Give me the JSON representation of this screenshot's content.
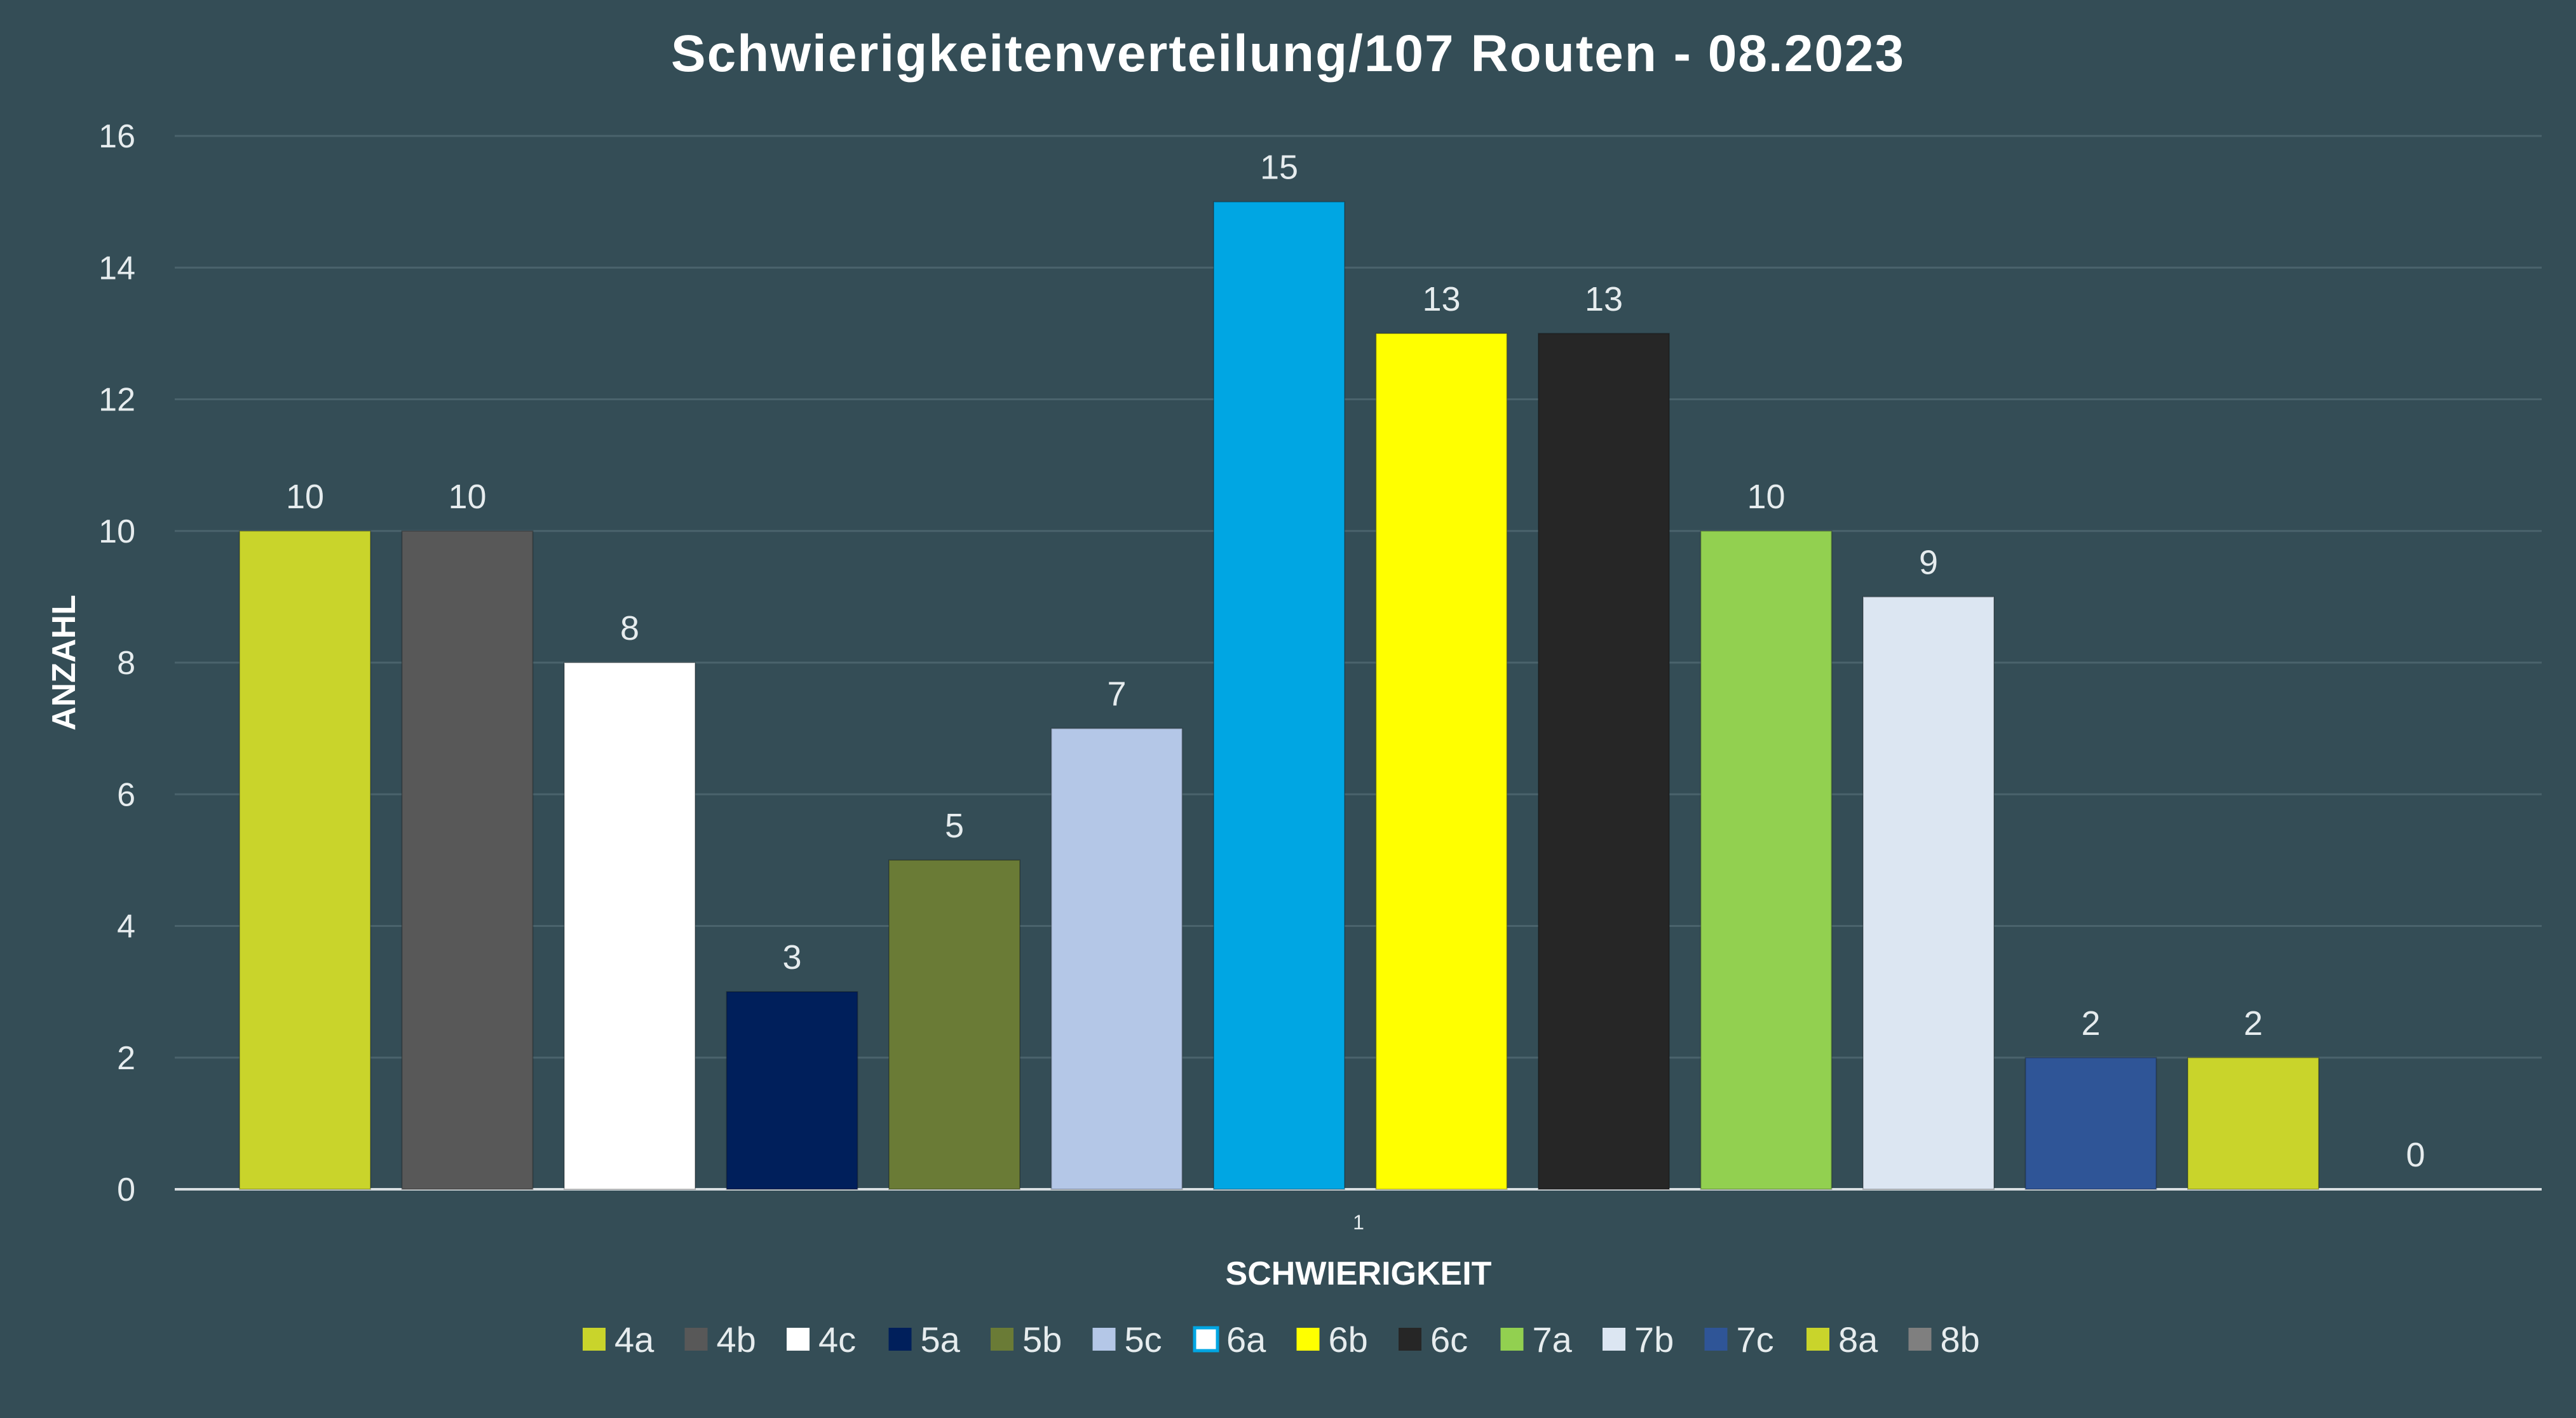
{
  "chart_data": {
    "type": "bar",
    "title": "Schwierigkeitenverteilung/107 Routen - 08.2023",
    "xlabel": "SCHWIERIGKEIT",
    "ylabel": "ANZAHL",
    "category_label": "1",
    "ylim": [
      0,
      16
    ],
    "yticks": [
      0,
      2,
      4,
      6,
      8,
      10,
      12,
      14,
      16
    ],
    "grid": true,
    "legend_position": "bottom",
    "series": [
      {
        "name": "4a",
        "value": 10,
        "color": "#c9d42b"
      },
      {
        "name": "4b",
        "value": 10,
        "color": "#585858"
      },
      {
        "name": "4c",
        "value": 8,
        "color": "#ffffff"
      },
      {
        "name": "5a",
        "value": 3,
        "color": "#001f5b"
      },
      {
        "name": "5b",
        "value": 5,
        "color": "#6a7b36"
      },
      {
        "name": "5c",
        "value": 7,
        "color": "#b4c7e7"
      },
      {
        "name": "6a",
        "value": 15,
        "color": "#00a6e3"
      },
      {
        "name": "6b",
        "value": 13,
        "color": "#ffff00"
      },
      {
        "name": "6c",
        "value": 13,
        "color": "#262626"
      },
      {
        "name": "7a",
        "value": 10,
        "color": "#92d050"
      },
      {
        "name": "7b",
        "value": 9,
        "color": "#dce6f2"
      },
      {
        "name": "7c",
        "value": 2,
        "color": "#2f5597"
      },
      {
        "name": "8a",
        "value": 2,
        "color": "#c9d42b"
      },
      {
        "name": "8b",
        "value": 0,
        "color": "#7f7f7f"
      }
    ],
    "legend_swatch_colors": {
      "6a": {
        "fill": "#ffffff",
        "border": "#00a6e3"
      }
    }
  }
}
